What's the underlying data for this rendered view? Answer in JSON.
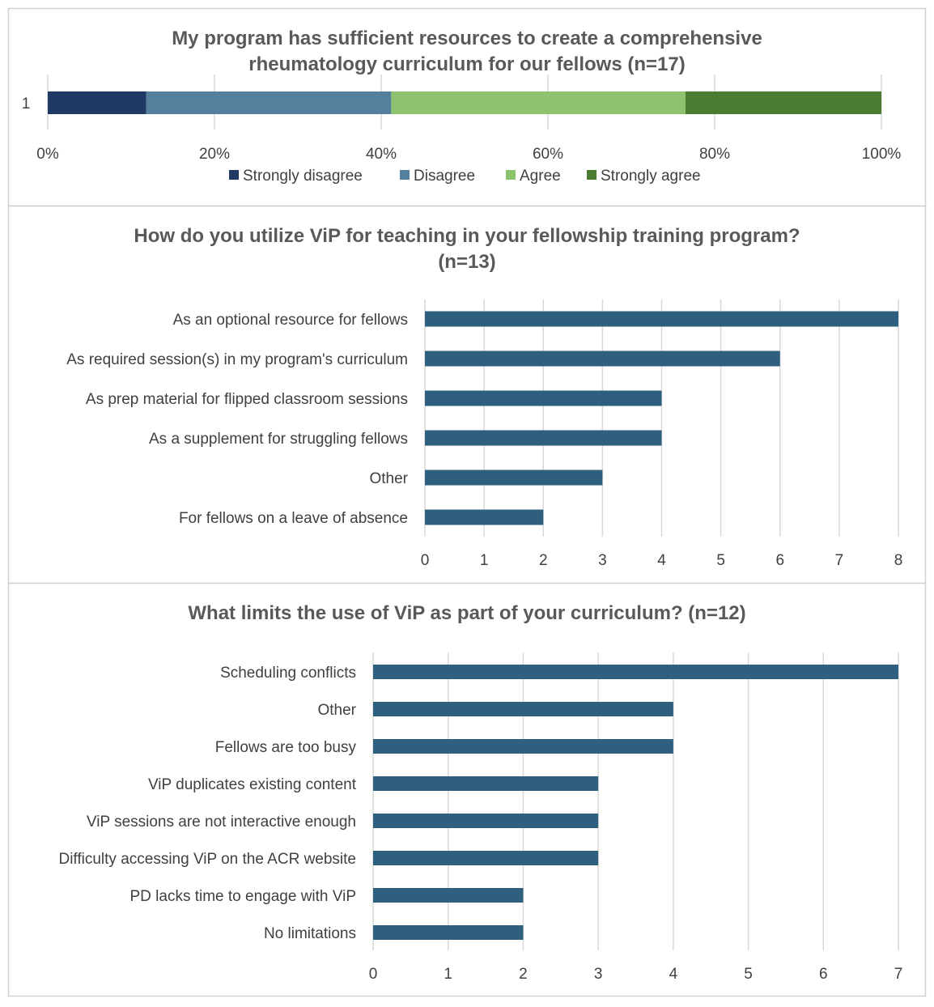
{
  "colors": {
    "bar": "#2e5f7f",
    "grid": "#d9d9d9",
    "border": "#d0d0d0",
    "strongly_disagree": "#203864",
    "disagree": "#54809e",
    "agree": "#8dc26f",
    "strongly_agree": "#4a7c31"
  },
  "chart_data": [
    {
      "type": "bar",
      "orientation": "horizontal",
      "stacked": "percent",
      "title_lines": [
        "My program has sufficient resources to create a comprehensive",
        "rheumatology curriculum for our fellows (n=17)"
      ],
      "categories": [
        "1"
      ],
      "xlim": [
        0,
        100
      ],
      "xticks": [
        "0%",
        "20%",
        "40%",
        "60%",
        "80%",
        "100%"
      ],
      "series": [
        {
          "name": "Strongly disagree",
          "values": [
            11.8
          ],
          "color_key": "strongly_disagree"
        },
        {
          "name": "Disagree",
          "values": [
            29.4
          ],
          "color_key": "disagree"
        },
        {
          "name": "Agree",
          "values": [
            35.3
          ],
          "color_key": "agree"
        },
        {
          "name": "Strongly agree",
          "values": [
            23.5
          ],
          "color_key": "strongly_agree"
        }
      ],
      "legend_position": "bottom",
      "grid": true
    },
    {
      "type": "bar",
      "orientation": "horizontal",
      "title_lines": [
        "How do you utilize ViP for teaching in your fellowship training program?",
        "(n=13)"
      ],
      "categories": [
        "As an optional resource for fellows",
        "As required session(s) in my program's curriculum",
        "As prep material for flipped classroom sessions",
        "As a supplement for struggling fellows",
        "Other",
        "For fellows on a leave of absence"
      ],
      "values": [
        8,
        6,
        4,
        4,
        3,
        2
      ],
      "xlim": [
        0,
        8
      ],
      "xticks": [
        "0",
        "1",
        "2",
        "3",
        "4",
        "5",
        "6",
        "7",
        "8"
      ],
      "grid": true
    },
    {
      "type": "bar",
      "orientation": "horizontal",
      "title_lines": [
        "What limits the use of ViP as part of your curriculum? (n=12)"
      ],
      "categories": [
        "Scheduling conflicts",
        "Other",
        "Fellows are too busy",
        "ViP duplicates existing content",
        "ViP sessions are not interactive enough",
        "Difficulty accessing ViP on the ACR website",
        "PD lacks time to engage with ViP",
        "No limitations"
      ],
      "values": [
        7,
        4,
        4,
        3,
        3,
        3,
        2,
        2
      ],
      "xlim": [
        0,
        7
      ],
      "xticks": [
        "0",
        "1",
        "2",
        "3",
        "4",
        "5",
        "6",
        "7"
      ],
      "grid": true
    }
  ]
}
